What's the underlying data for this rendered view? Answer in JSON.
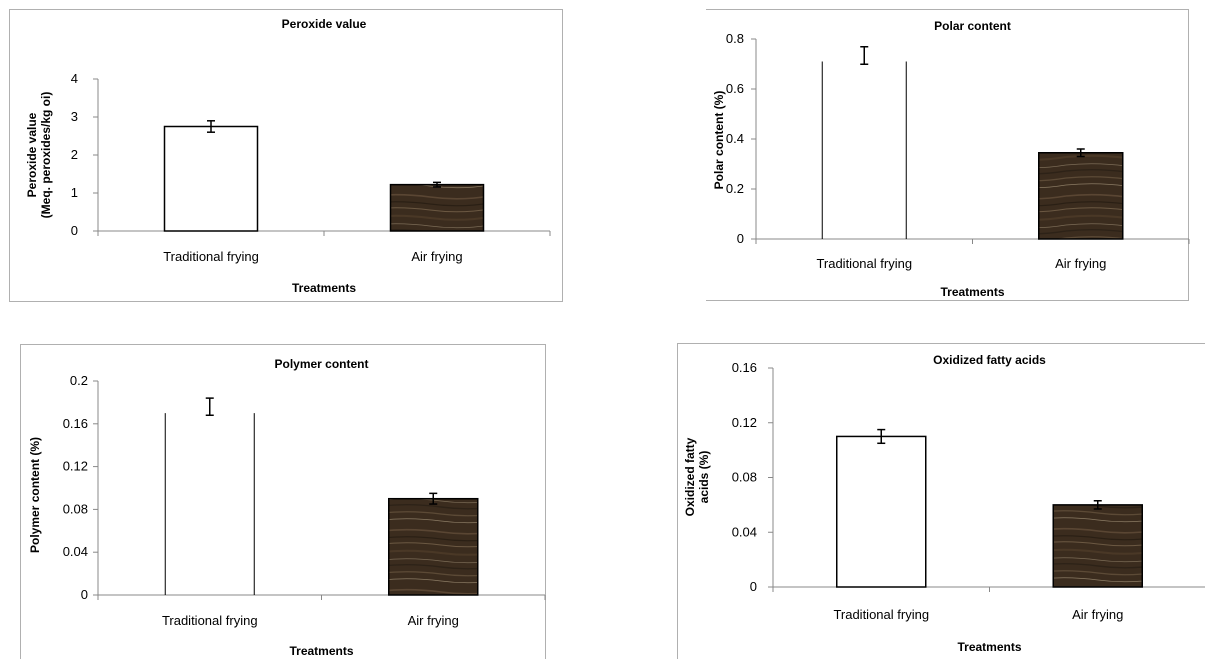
{
  "chart_data": [
    {
      "type": "bar",
      "title": "Peroxide value",
      "xlabel": "Treatments",
      "ylabel_lines": [
        "Peroxide value",
        "(Meq. peroxides/kg oi)"
      ],
      "categories": [
        "Traditional frying",
        "Air frying"
      ],
      "values": [
        2.75,
        1.22
      ],
      "errors": [
        0.15,
        0.06
      ],
      "ylim": [
        0,
        4
      ],
      "yticks": [
        "0",
        "1",
        "2",
        "3",
        "4"
      ],
      "ytick_values": [
        0,
        1,
        2,
        3,
        4
      ],
      "bar_styles": [
        "outline",
        "wood"
      ],
      "box": "full"
    },
    {
      "type": "bar",
      "title": "Polar content",
      "xlabel": "Treatments",
      "ylabel_lines": [
        "Polar content (%)"
      ],
      "categories": [
        "Traditional frying",
        "Air frying"
      ],
      "values": [
        0.71,
        0.345
      ],
      "errors": [
        0.035,
        0.015
      ],
      "ylim": [
        0,
        0.8
      ],
      "yticks": [
        "0",
        "0.2",
        "0.4",
        "0.6",
        "0.8"
      ],
      "ytick_values": [
        0,
        0.2,
        0.4,
        0.6,
        0.8
      ],
      "bar_styles": [
        "sides",
        "wood"
      ],
      "box": "partial",
      "error_position": "top"
    },
    {
      "type": "bar",
      "title": "Polymer content",
      "xlabel": "Treatments",
      "ylabel_lines": [
        "Polymer content (%)"
      ],
      "categories": [
        "Traditional frying",
        "Air frying"
      ],
      "values": [
        0.17,
        0.09
      ],
      "errors": [
        0.008,
        0.005
      ],
      "ylim": [
        0,
        0.2
      ],
      "yticks": [
        "0",
        "0.04",
        "0.08",
        "0.12",
        "0.16",
        "0.2"
      ],
      "ytick_values": [
        0,
        0.04,
        0.08,
        0.12,
        0.16,
        0.2
      ],
      "bar_styles": [
        "sides",
        "wood"
      ],
      "box": "full",
      "error_position": "top"
    },
    {
      "type": "bar",
      "title": "Oxidized fatty acids",
      "xlabel": "Treatments",
      "ylabel_lines": [
        "Oxidized fatty",
        "acids (%)"
      ],
      "categories": [
        "Traditional frying",
        "Air frying"
      ],
      "values": [
        0.11,
        0.06
      ],
      "errors": [
        0.005,
        0.003
      ],
      "ylim": [
        0,
        0.16
      ],
      "yticks": [
        "0",
        "0.04",
        "0.08",
        "0.12",
        "0.16"
      ],
      "ytick_values": [
        0,
        0.04,
        0.08,
        0.12,
        0.16
      ],
      "bar_styles": [
        "outline",
        "wood"
      ],
      "box": "full"
    }
  ]
}
